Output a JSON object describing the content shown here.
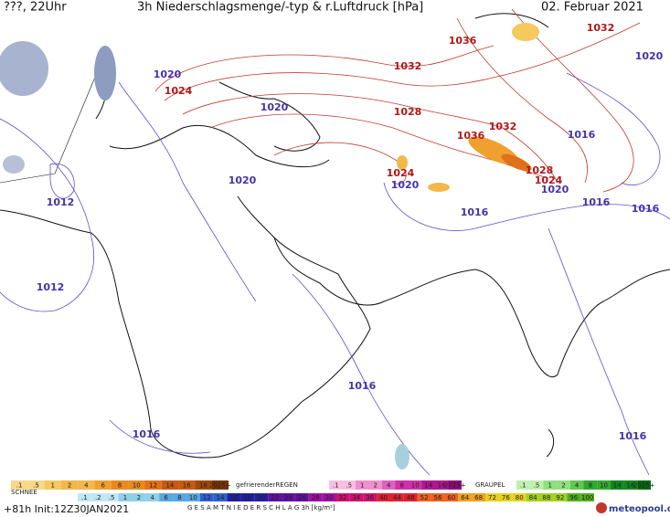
{
  "header": {
    "time": "???, 22Uhr",
    "title": "3h Niederschlagsmenge/-typ & r.Luftdruck [hPa]",
    "date": "02. Februar 2021"
  },
  "isobar_labels": [
    "1036",
    "1032",
    "1020",
    "1020",
    "1024",
    "1032",
    "1020",
    "1028",
    "1032",
    "1036",
    "1016",
    "1012",
    "1020",
    "1024",
    "1020",
    "1028",
    "1024",
    "1020",
    "1016",
    "1016",
    "1016",
    "1012",
    "1016",
    "1016",
    "1016"
  ],
  "legend": {
    "rain_scale": [
      ".1",
      ".5",
      "1",
      "2",
      "4",
      "6",
      "8",
      "10",
      "12",
      "14",
      "16",
      "18",
      "2025+"
    ],
    "freezing_rain_label": "gefrierenderREGEN",
    "freezing_rain_scale": [
      ".1",
      ".5",
      "1",
      "2",
      "4",
      "8",
      "10",
      "14",
      "16",
      "2025+"
    ],
    "graupel_label": "GRAUPEL",
    "graupel_scale": [
      ".1",
      ".5",
      "1",
      "2",
      "4",
      "8",
      "10",
      "14",
      "16",
      "2025+"
    ],
    "snow_label": "SCHNEE",
    "total_scale": [
      ".1",
      ".2",
      ".5",
      "1",
      "2",
      "4",
      "6",
      "8",
      "10",
      "12",
      "14",
      "16",
      "18",
      "20",
      "22",
      "24",
      "26",
      "28",
      "30",
      "32",
      "34",
      "36",
      "40",
      "44",
      "48",
      "52",
      "56",
      "60",
      "64",
      "68",
      "72",
      "76",
      "80",
      "84",
      "88",
      "92",
      "96",
      "100"
    ],
    "total_label": "G E S A M T N I E D E R S C H L A G   3h   [kg/m²]"
  },
  "footer": {
    "init": "+81h Init:12Z30JAN2021",
    "brand": "meteopool.org"
  }
}
